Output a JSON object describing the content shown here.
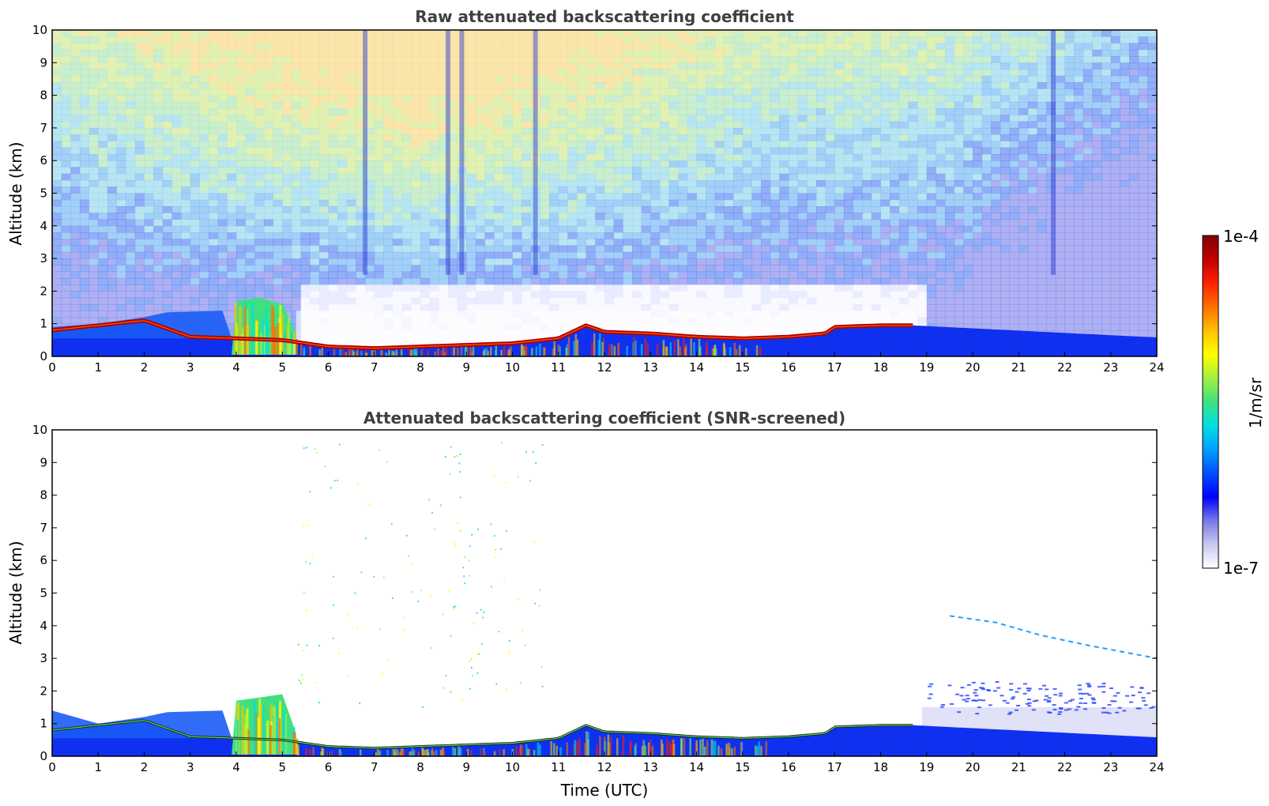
{
  "chart_data": [
    {
      "type": "heatmap",
      "title": "Raw attenuated backscattering coefficient",
      "xlabel": "",
      "ylabel": "Altitude (km)",
      "xlim": [
        0,
        24
      ],
      "ylim": [
        0,
        10
      ],
      "x_ticks": [
        "0",
        "1",
        "2",
        "3",
        "4",
        "5",
        "6",
        "7",
        "8",
        "9",
        "10",
        "11",
        "12",
        "13",
        "14",
        "15",
        "16",
        "17",
        "18",
        "19",
        "20",
        "21",
        "22",
        "23",
        "24"
      ],
      "y_ticks": [
        "0",
        "1",
        "2",
        "3",
        "4",
        "5",
        "6",
        "7",
        "8",
        "9",
        "10"
      ],
      "screened": false,
      "layer_top_km": [
        [
          0,
          0.8
        ],
        [
          1,
          0.95
        ],
        [
          2,
          1.1
        ],
        [
          3,
          0.6
        ],
        [
          4,
          0.55
        ],
        [
          5,
          0.5
        ],
        [
          6,
          0.3
        ],
        [
          7,
          0.25
        ],
        [
          8,
          0.3
        ],
        [
          9,
          0.35
        ],
        [
          10,
          0.4
        ],
        [
          11,
          0.55
        ],
        [
          11.6,
          0.95
        ],
        [
          12,
          0.75
        ],
        [
          13,
          0.7
        ],
        [
          14,
          0.6
        ],
        [
          15,
          0.55
        ],
        [
          16,
          0.6
        ],
        [
          16.8,
          0.7
        ],
        [
          17,
          0.9
        ],
        [
          18,
          0.95
        ],
        [
          18.7,
          0.95
        ]
      ],
      "upper_layer_km": [
        [
          0,
          0.9
        ],
        [
          1,
          1.0
        ],
        [
          2,
          1.2
        ],
        [
          2.5,
          1.35
        ],
        [
          3.7,
          1.4
        ]
      ],
      "aerosol_band": [
        [
          4,
          1.7
        ],
        [
          4.5,
          1.8
        ],
        [
          5,
          1.6
        ],
        [
          5.3,
          0.7
        ]
      ],
      "noise_columns_utc": [
        6.8,
        8.6,
        8.9,
        10.5,
        21.75
      ]
    },
    {
      "type": "heatmap",
      "title": "Attenuated backscattering coefficient (SNR-screened)",
      "xlabel": "Time (UTC)",
      "ylabel": "Altitude (km)",
      "xlim": [
        0,
        24
      ],
      "ylim": [
        0,
        10
      ],
      "x_ticks": [
        "0",
        "1",
        "2",
        "3",
        "4",
        "5",
        "6",
        "7",
        "8",
        "9",
        "10",
        "11",
        "12",
        "13",
        "14",
        "15",
        "16",
        "17",
        "18",
        "19",
        "20",
        "21",
        "22",
        "23",
        "24"
      ],
      "y_ticks": [
        "0",
        "1",
        "2",
        "3",
        "4",
        "5",
        "6",
        "7",
        "8",
        "9",
        "10"
      ],
      "screened": true,
      "layer_top_km": [
        [
          0,
          0.8
        ],
        [
          1,
          0.95
        ],
        [
          2,
          1.1
        ],
        [
          3,
          0.6
        ],
        [
          4,
          0.55
        ],
        [
          5,
          0.5
        ],
        [
          6,
          0.3
        ],
        [
          7,
          0.25
        ],
        [
          8,
          0.3
        ],
        [
          9,
          0.35
        ],
        [
          10,
          0.4
        ],
        [
          11,
          0.55
        ],
        [
          11.6,
          0.95
        ],
        [
          12,
          0.75
        ],
        [
          13,
          0.7
        ],
        [
          14,
          0.6
        ],
        [
          15,
          0.55
        ],
        [
          16,
          0.6
        ],
        [
          16.8,
          0.7
        ],
        [
          17,
          0.9
        ],
        [
          18,
          0.95
        ],
        [
          18.7,
          0.95
        ]
      ],
      "upper_layer_km": [
        [
          0,
          1.4
        ],
        [
          1,
          1.0
        ],
        [
          2,
          1.2
        ],
        [
          2.5,
          1.35
        ],
        [
          3.7,
          1.4
        ]
      ],
      "aerosol_band": [
        [
          4,
          1.7
        ],
        [
          4.5,
          1.8
        ],
        [
          5,
          1.9
        ],
        [
          5.3,
          0.7
        ]
      ],
      "thin_layer_km": [
        [
          19.5,
          4.3
        ],
        [
          20.5,
          4.1
        ],
        [
          21.5,
          3.7
        ],
        [
          22.5,
          3.4
        ],
        [
          24,
          3.0
        ]
      ]
    }
  ],
  "colorbar": {
    "max_label": "1e-4",
    "min_label": "1e-7",
    "unit_label": "1/m/sr",
    "stops": [
      "#ffffff",
      "#c8c8f0",
      "#7878e6",
      "#0000ff",
      "#0050ff",
      "#00a0ff",
      "#00e0e0",
      "#40e080",
      "#a0f040",
      "#ffff00",
      "#ffc000",
      "#ff7000",
      "#ff2000",
      "#c00000",
      "#800000"
    ]
  }
}
